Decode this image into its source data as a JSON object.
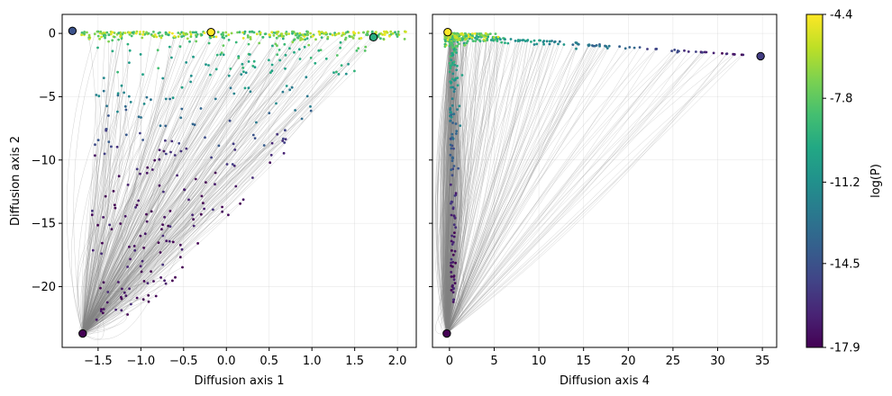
{
  "chart_data": [
    {
      "type": "scatter",
      "id": "left",
      "xlabel": "Diffusion axis 1",
      "ylabel": "Diffusion axis 2",
      "xlim": [
        -1.92,
        2.22
      ],
      "ylim": [
        -24.8,
        1.5
      ],
      "xticks": [
        -1.5,
        -1.0,
        -0.5,
        0.0,
        0.5,
        1.0,
        1.5,
        2.0
      ],
      "xtick_labels": [
        "−1.5",
        "−1.0",
        "−0.5",
        "0.0",
        "0.5",
        "1.0",
        "1.5",
        "2.0"
      ],
      "yticks": [
        0,
        -5,
        -10,
        -15,
        -20
      ],
      "ytick_labels": [
        "0",
        "−5",
        "−10",
        "−15",
        "−20"
      ],
      "grid": true,
      "highlighted_points": [
        {
          "x": -1.8,
          "y": 0.2,
          "logP": -14.5
        },
        {
          "x": -0.18,
          "y": 0.1,
          "logP": -4.4
        },
        {
          "x": 1.72,
          "y": -0.3,
          "logP": -9.5
        },
        {
          "x": -1.68,
          "y": -23.7,
          "logP": -17.9
        }
      ]
    },
    {
      "type": "scatter",
      "id": "right",
      "xlabel": "Diffusion axis 4",
      "ylabel": "",
      "xlim": [
        -1.9,
        36.6
      ],
      "ylim": [
        -24.8,
        1.5
      ],
      "xticks": [
        0,
        5,
        10,
        15,
        20,
        25,
        30,
        35
      ],
      "xtick_labels": [
        "0",
        "5",
        "10",
        "15",
        "20",
        "25",
        "30",
        "35"
      ],
      "yticks": [
        0,
        -5,
        -10,
        -15,
        -20
      ],
      "ytick_labels": [
        "",
        "",
        "",
        "",
        ""
      ],
      "grid": true,
      "highlighted_points": [
        {
          "x": -0.2,
          "y": 0.1,
          "logP": -4.4
        },
        {
          "x": 34.8,
          "y": -1.8,
          "logP": -15.5
        },
        {
          "x": -0.3,
          "y": -23.7,
          "logP": -17.9
        }
      ]
    }
  ],
  "colorbar": {
    "label": "log(P)",
    "range": [
      -17.9,
      -4.4
    ],
    "ticks": [
      -4.4,
      -7.8,
      -11.2,
      -14.5,
      -17.9
    ],
    "tick_labels": [
      "-4.4",
      "-7.8",
      "-11.2",
      "-14.5",
      "-17.9"
    ],
    "colormap": "viridis"
  },
  "colors": {
    "edges": "#808080"
  }
}
